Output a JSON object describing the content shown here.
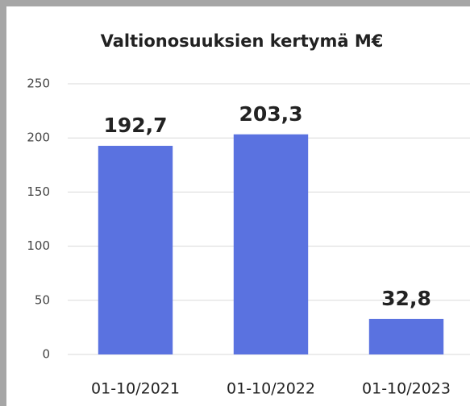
{
  "chart_data": {
    "type": "bar",
    "title": "Valtionosuuksien kertymä M€",
    "categories": [
      "01-10/2021",
      "01-10/2022",
      "01-10/2023"
    ],
    "values": [
      192.7,
      203.3,
      32.8
    ],
    "value_labels": [
      "192,7",
      "203,3",
      "32,8"
    ],
    "color": "#5a72e0",
    "ylim": [
      0,
      250
    ],
    "yticks": [
      0,
      50,
      100,
      150,
      200,
      250
    ],
    "grid": true
  }
}
